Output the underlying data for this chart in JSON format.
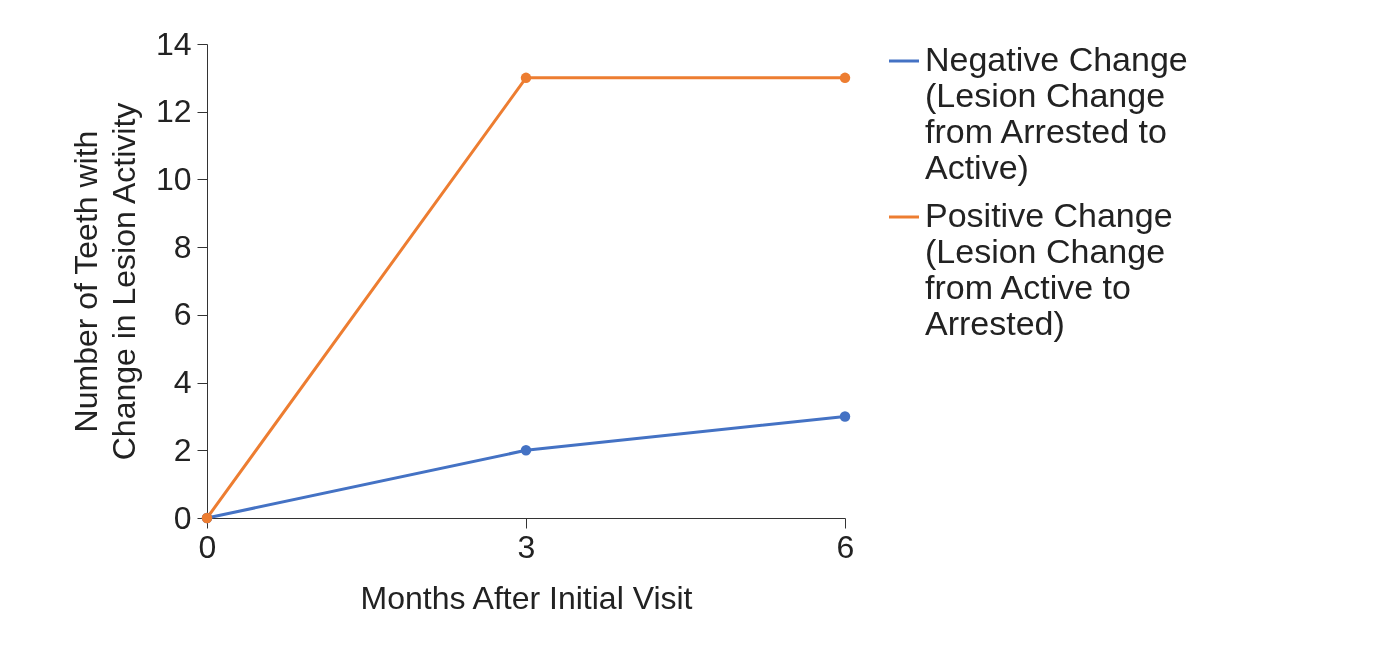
{
  "chart_data": {
    "type": "line",
    "xlabel": "Months After Initial Visit",
    "ylabel": "Number of Teeth with Change in Lesion Activity",
    "x": [
      0,
      3,
      6
    ],
    "xlim": [
      0,
      6
    ],
    "xticks": [
      0,
      3,
      6
    ],
    "ylim": [
      0,
      14
    ],
    "yticks": [
      0,
      2,
      4,
      6,
      8,
      10,
      12,
      14
    ],
    "series": [
      {
        "name": "Negative Change (Lesion Change from Arrested to Active)",
        "color": "#4472c4",
        "values": [
          0,
          2,
          3
        ]
      },
      {
        "name": "Positive Change (Lesion Change from Active to Arrested)",
        "color": "#ed7d31",
        "values": [
          0,
          13,
          13
        ]
      }
    ],
    "grid": false,
    "legend": "right",
    "marker": "circle",
    "line_style": "solid"
  }
}
